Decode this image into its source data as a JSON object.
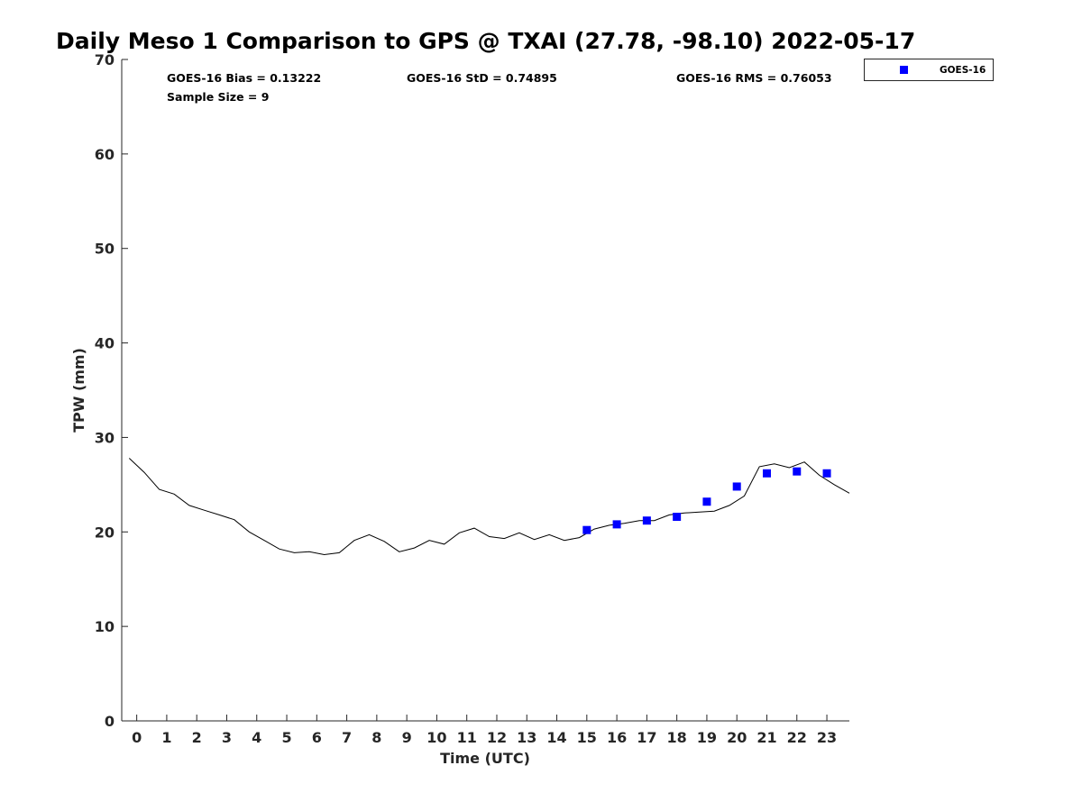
{
  "chart_data": {
    "type": "line",
    "title": "Daily Meso 1 Comparison to GPS @ TXAI (27.78, -98.10) 2022-05-17",
    "xlabel": "Time (UTC)",
    "ylabel": "TPW (mm)",
    "xlim": [
      -0.5,
      23.75
    ],
    "ylim": [
      0,
      70
    ],
    "x_ticks": [
      0,
      1,
      2,
      3,
      4,
      5,
      6,
      7,
      8,
      9,
      10,
      11,
      12,
      13,
      14,
      15,
      16,
      17,
      18,
      19,
      20,
      21,
      22,
      23
    ],
    "y_ticks": [
      0,
      10,
      20,
      30,
      40,
      50,
      60,
      70
    ],
    "grid": false,
    "stats": {
      "bias": "GOES-16 Bias = 0.13222",
      "std": "GOES-16 StD = 0.74895",
      "rms": "GOES-16 RMS = 0.76053",
      "sample": "Sample Size = 9"
    },
    "legend": {
      "position": "top-right, outside plot",
      "entries": [
        "GOES-16"
      ]
    },
    "series": [
      {
        "kind": "line",
        "color": "#000000",
        "x": [
          -0.25,
          0.25,
          0.75,
          1.25,
          1.75,
          2.25,
          2.75,
          3.25,
          3.75,
          4.25,
          4.75,
          5.25,
          5.75,
          6.25,
          6.75,
          7.25,
          7.75,
          8.25,
          8.75,
          9.25,
          9.75,
          10.25,
          10.75,
          11.25,
          11.75,
          12.25,
          12.75,
          13.25,
          13.75,
          14.25,
          14.75,
          15.25,
          15.75,
          16.25,
          16.75,
          17.25,
          17.75,
          18.25,
          18.75,
          19.25,
          19.75,
          20.25,
          20.75,
          21.25,
          21.75,
          22.25,
          22.75,
          23.25,
          23.75
        ],
        "y": [
          27.8,
          26.3,
          24.5,
          24.0,
          22.8,
          22.3,
          21.8,
          21.3,
          20.0,
          19.1,
          18.2,
          17.8,
          17.9,
          17.6,
          17.8,
          19.1,
          19.7,
          19.0,
          17.9,
          18.3,
          19.1,
          18.7,
          19.9,
          20.4,
          19.5,
          19.3,
          19.9,
          19.2,
          19.7,
          19.1,
          19.4,
          20.3,
          20.7,
          20.9,
          21.2,
          21.2,
          21.8,
          22.0,
          22.1,
          22.2,
          22.8,
          23.8,
          26.9,
          27.2,
          26.8,
          27.4,
          26.0,
          25.0,
          24.1
        ]
      },
      {
        "kind": "scatter",
        "name": "GOES-16",
        "color": "#0000ff",
        "x": [
          15,
          16,
          17,
          18,
          19,
          20,
          21,
          22,
          23
        ],
        "y": [
          20.2,
          20.8,
          21.2,
          21.6,
          23.2,
          24.8,
          26.2,
          26.4,
          26.2
        ]
      }
    ]
  }
}
